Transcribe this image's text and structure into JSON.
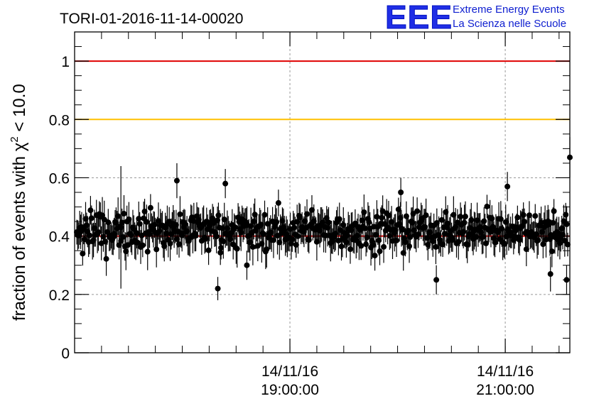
{
  "chart_data": {
    "type": "scatter",
    "title": "TORI-01-2016-11-14-00020",
    "ylabel": "fraction of events with χ² < 10.0",
    "ylabel_parts": {
      "prefix": "fraction of events with ",
      "symbol": "χ",
      "exponent": "2",
      "suffix": " < 10.0"
    },
    "xlabel": "",
    "ylim": [
      0,
      1.1
    ],
    "x_range_hours": [
      17.0,
      21.6
    ],
    "y_ticks": [
      {
        "value": 0,
        "label": "0"
      },
      {
        "value": 0.2,
        "label": "0.2"
      },
      {
        "value": 0.4,
        "label": "0.4"
      },
      {
        "value": 0.6,
        "label": "0.6"
      },
      {
        "value": 0.8,
        "label": "0.8"
      },
      {
        "value": 1.0,
        "label": "1"
      }
    ],
    "x_ticks": [
      {
        "hour": 19.0,
        "date": "14/11/16",
        "time": "19:00:00"
      },
      {
        "hour": 21.0,
        "date": "14/11/16",
        "time": "21:00:00"
      }
    ],
    "reference_lines": [
      {
        "value": 1.0,
        "color": "#e00000"
      },
      {
        "value": 0.8,
        "color": "#ffc000"
      },
      {
        "value": 0.4,
        "color": "#e00000"
      }
    ],
    "grid": true,
    "series": [
      {
        "name": "fraction",
        "count": 500,
        "mean": 0.42,
        "spread": 0.055,
        "error_typical": 0.05,
        "notable_points": [
          {
            "hour": 17.43,
            "value": 0.43,
            "error": 0.21
          },
          {
            "hour": 18.33,
            "value": 0.22,
            "error": 0.04
          },
          {
            "hour": 18.36,
            "value": 0.36,
            "error": 0.04
          },
          {
            "hour": 20.36,
            "value": 0.25,
            "error": 0.05
          },
          {
            "hour": 21.02,
            "value": 0.57,
            "error": 0.05
          },
          {
            "hour": 20.03,
            "value": 0.55,
            "error": 0.05
          },
          {
            "hour": 21.6,
            "value": 0.67,
            "error": 0.07
          },
          {
            "hour": 21.42,
            "value": 0.27,
            "error": 0.06
          },
          {
            "hour": 21.57,
            "value": 0.25,
            "error": 0.05
          },
          {
            "hour": 17.95,
            "value": 0.59,
            "error": 0.06
          },
          {
            "hour": 18.4,
            "value": 0.58,
            "error": 0.05
          },
          {
            "hour": 18.6,
            "value": 0.3,
            "error": 0.05
          }
        ]
      }
    ]
  },
  "logo": {
    "mark": "EEE",
    "line1": "Extreme Energy Events",
    "line2": "La Scienza nelle Scuole"
  },
  "colors": {
    "marker": "#000000",
    "logo_blue": "#1f2ee6"
  }
}
